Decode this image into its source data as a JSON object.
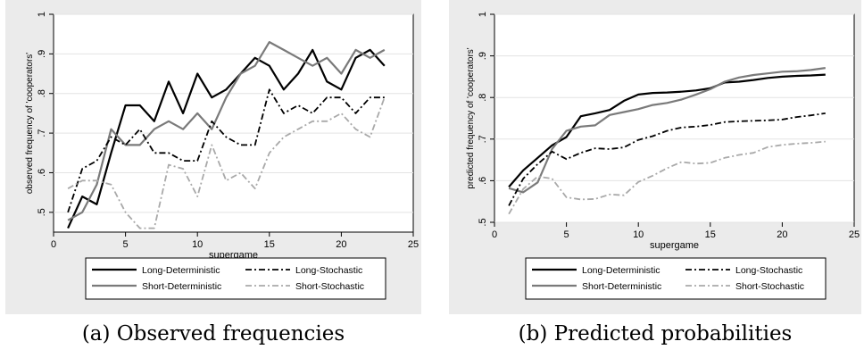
{
  "captions": {
    "a": "(a) Observed frequencies",
    "b": "(b) Predicted probabilities"
  },
  "styles": {
    "Long-Deterministic": {
      "color": "#000000",
      "dash": "",
      "width": 2.2
    },
    "Short-Deterministic": {
      "color": "#7a7a7a",
      "dash": "",
      "width": 2.2
    },
    "Long-Stochastic": {
      "color": "#000000",
      "dash": "7,3,2,3",
      "width": 1.8
    },
    "Short-Stochastic": {
      "color": "#a9a9a9",
      "dash": "7,3,2,3",
      "width": 1.8
    }
  },
  "chart_data": [
    {
      "type": "line",
      "xlabel": "supergame",
      "ylabel": "observed frequency of 'cooperators'",
      "xlim": [
        0,
        25
      ],
      "ylim": [
        0.45,
        1
      ],
      "xticks": [
        0,
        5,
        10,
        15,
        20,
        25
      ],
      "xtick_labels": [
        "0",
        "5",
        "10",
        "15",
        "20",
        "25"
      ],
      "yticks": [
        0.5,
        0.6,
        0.7,
        0.8,
        0.9,
        1
      ],
      "ytick_labels": [
        ".5",
        ".6",
        ".7",
        ".8",
        ".9",
        "1"
      ],
      "legend_position": "bottom",
      "x": [
        1,
        2,
        3,
        4,
        5,
        6,
        7,
        8,
        9,
        10,
        11,
        12,
        13,
        14,
        15,
        16,
        17,
        18,
        19,
        20,
        21,
        22,
        23
      ],
      "series": [
        {
          "name": "Long-Deterministic",
          "values": [
            0.46,
            0.54,
            0.52,
            0.65,
            0.77,
            0.77,
            0.73,
            0.83,
            0.75,
            0.85,
            0.79,
            0.81,
            0.85,
            0.89,
            0.87,
            0.81,
            0.85,
            0.91,
            0.83,
            0.81,
            0.89,
            0.91,
            0.87
          ]
        },
        {
          "name": "Short-Deterministic",
          "values": [
            0.48,
            0.5,
            0.57,
            0.71,
            0.67,
            0.67,
            0.71,
            0.73,
            0.71,
            0.75,
            0.71,
            0.79,
            0.85,
            0.87,
            0.93,
            0.91,
            0.89,
            0.87,
            0.89,
            0.85,
            0.91,
            0.89,
            0.91
          ]
        },
        {
          "name": "Long-Stochastic",
          "values": [
            0.5,
            0.61,
            0.63,
            0.69,
            0.67,
            0.71,
            0.65,
            0.65,
            0.63,
            0.63,
            0.73,
            0.69,
            0.67,
            0.67,
            0.81,
            0.75,
            0.77,
            0.75,
            0.79,
            0.79,
            0.75,
            0.79,
            0.79
          ]
        },
        {
          "name": "Short-Stochastic",
          "values": [
            0.56,
            0.58,
            0.58,
            0.57,
            0.5,
            0.46,
            0.46,
            0.62,
            0.61,
            0.54,
            0.67,
            0.58,
            0.6,
            0.56,
            0.65,
            0.69,
            0.71,
            0.73,
            0.73,
            0.75,
            0.71,
            0.69,
            0.79
          ]
        }
      ]
    },
    {
      "type": "line",
      "xlabel": "supergame",
      "ylabel": "predicted frequency of 'cooperators'",
      "xlim": [
        0,
        25
      ],
      "ylim": [
        0.5,
        1
      ],
      "xticks": [
        0,
        5,
        10,
        15,
        20,
        25
      ],
      "xtick_labels": [
        "0",
        "5",
        "10",
        "15",
        "20",
        "25"
      ],
      "yticks": [
        0.5,
        0.6,
        0.7,
        0.8,
        0.9,
        1
      ],
      "ytick_labels": [
        ".5",
        ".6",
        ".7",
        ".8",
        ".9",
        "1"
      ],
      "legend_position": "bottom",
      "x": [
        1,
        2,
        3,
        4,
        5,
        6,
        7,
        8,
        9,
        10,
        11,
        12,
        13,
        14,
        15,
        16,
        17,
        18,
        19,
        20,
        21,
        22,
        23
      ],
      "series": [
        {
          "name": "Long-Deterministic",
          "values": [
            0.585,
            0.625,
            0.655,
            0.685,
            0.705,
            0.755,
            0.762,
            0.77,
            0.792,
            0.807,
            0.811,
            0.812,
            0.814,
            0.817,
            0.822,
            0.836,
            0.838,
            0.842,
            0.847,
            0.85,
            0.852,
            0.853,
            0.855
          ]
        },
        {
          "name": "Short-Deterministic",
          "values": [
            0.582,
            0.572,
            0.596,
            0.676,
            0.72,
            0.73,
            0.733,
            0.758,
            0.765,
            0.772,
            0.782,
            0.787,
            0.795,
            0.807,
            0.82,
            0.838,
            0.848,
            0.854,
            0.858,
            0.862,
            0.863,
            0.866,
            0.871
          ]
        },
        {
          "name": "Long-Stochastic",
          "values": [
            0.54,
            0.605,
            0.64,
            0.67,
            0.652,
            0.667,
            0.678,
            0.676,
            0.68,
            0.698,
            0.707,
            0.72,
            0.728,
            0.73,
            0.734,
            0.741,
            0.743,
            0.744,
            0.745,
            0.747,
            0.753,
            0.757,
            0.762
          ]
        },
        {
          "name": "Short-Stochastic",
          "values": [
            0.52,
            0.58,
            0.61,
            0.605,
            0.56,
            0.555,
            0.556,
            0.567,
            0.565,
            0.597,
            0.612,
            0.63,
            0.645,
            0.641,
            0.643,
            0.655,
            0.662,
            0.667,
            0.681,
            0.686,
            0.689,
            0.691,
            0.694
          ]
        }
      ]
    }
  ]
}
